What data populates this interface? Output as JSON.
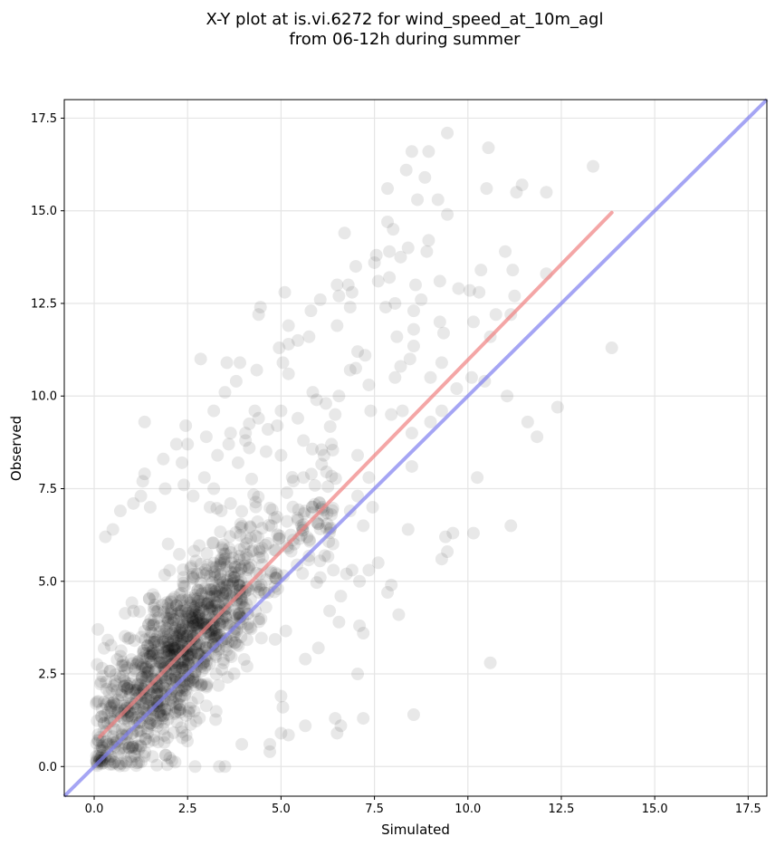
{
  "chart_data": {
    "type": "scatter",
    "title_lines": [
      "X-Y plot at is.vi.6272 for wind_speed_at_10m_agl",
      "from 06-12h during summer"
    ],
    "xlabel": "Simulated",
    "ylabel": "Observed",
    "xlim": [
      -0.8,
      18.0
    ],
    "ylim": [
      -0.8,
      18.0
    ],
    "xticks": [
      0.0,
      2.5,
      5.0,
      7.5,
      10.0,
      12.5,
      15.0,
      17.5
    ],
    "yticks": [
      0.0,
      2.5,
      5.0,
      7.5,
      10.0,
      12.5,
      15.0,
      17.5
    ],
    "xtick_labels": [
      "0.0",
      "2.5",
      "5.0",
      "7.5",
      "10.0",
      "12.5",
      "15.0",
      "17.5"
    ],
    "ytick_labels": [
      "0.0",
      "2.5",
      "5.0",
      "7.5",
      "10.0",
      "12.5",
      "15.0",
      "17.5"
    ],
    "grid": true,
    "point_color": "#000000",
    "point_alpha": 0.09,
    "regression_color": "#f08080",
    "identity_color": "#7f7fef",
    "regression_line": {
      "x": [
        0.15,
        13.85
      ],
      "y": [
        0.8,
        14.95
      ]
    },
    "identity_line": {
      "x": [
        -0.8,
        18.0
      ],
      "y": [
        -0.8,
        18.0
      ]
    },
    "series": [
      {
        "points": [
          [
            9.45,
            17.1
          ],
          [
            8.5,
            16.6
          ],
          [
            8.95,
            16.6
          ],
          [
            10.55,
            16.7
          ],
          [
            13.35,
            16.2
          ],
          [
            8.35,
            16.1
          ],
          [
            8.85,
            15.9
          ],
          [
            7.85,
            15.6
          ],
          [
            10.5,
            15.6
          ],
          [
            11.45,
            15.7
          ],
          [
            11.3,
            15.5
          ],
          [
            12.1,
            15.5
          ],
          [
            8.65,
            15.3
          ],
          [
            9.2,
            15.3
          ],
          [
            9.45,
            14.9
          ],
          [
            7.85,
            14.7
          ],
          [
            6.7,
            14.4
          ],
          [
            8.0,
            14.5
          ],
          [
            8.95,
            14.2
          ],
          [
            8.4,
            14.0
          ],
          [
            8.9,
            13.9
          ],
          [
            11.0,
            13.9
          ],
          [
            7.55,
            13.8
          ],
          [
            7.9,
            13.9
          ],
          [
            8.2,
            13.75
          ],
          [
            7.5,
            13.6
          ],
          [
            7.0,
            13.5
          ],
          [
            10.35,
            13.4
          ],
          [
            11.2,
            13.4
          ],
          [
            7.9,
            13.2
          ],
          [
            12.1,
            13.3
          ],
          [
            7.6,
            13.1
          ],
          [
            8.6,
            13.0
          ],
          [
            9.25,
            13.1
          ],
          [
            6.5,
            13.0
          ],
          [
            6.8,
            13.0
          ],
          [
            6.55,
            12.7
          ],
          [
            6.9,
            12.8
          ],
          [
            9.75,
            12.9
          ],
          [
            10.05,
            12.85
          ],
          [
            10.3,
            12.8
          ],
          [
            5.1,
            12.8
          ],
          [
            8.75,
            12.6
          ],
          [
            11.25,
            12.7
          ],
          [
            6.05,
            12.6
          ],
          [
            8.05,
            12.5
          ],
          [
            7.8,
            12.4
          ],
          [
            6.85,
            12.4
          ],
          [
            4.45,
            12.4
          ],
          [
            4.4,
            12.2
          ],
          [
            5.8,
            12.3
          ],
          [
            8.55,
            12.3
          ],
          [
            10.75,
            12.2
          ],
          [
            11.15,
            12.2
          ],
          [
            10.15,
            12.0
          ],
          [
            9.25,
            12.0
          ],
          [
            5.2,
            11.9
          ],
          [
            6.5,
            11.9
          ],
          [
            8.1,
            11.6
          ],
          [
            8.55,
            11.8
          ],
          [
            9.35,
            11.7
          ],
          [
            5.75,
            11.6
          ],
          [
            5.45,
            11.5
          ],
          [
            10.6,
            11.6
          ],
          [
            5.2,
            11.4
          ],
          [
            4.95,
            11.3
          ],
          [
            8.55,
            11.35
          ],
          [
            13.85,
            11.3
          ],
          [
            7.05,
            11.2
          ],
          [
            7.25,
            11.1
          ],
          [
            9.3,
            10.9
          ],
          [
            6.85,
            10.7
          ],
          [
            8.45,
            11.0
          ],
          [
            8.2,
            10.8
          ],
          [
            3.55,
            10.9
          ],
          [
            3.9,
            10.9
          ],
          [
            5.05,
            10.9
          ],
          [
            2.85,
            11.0
          ],
          [
            7.0,
            10.75
          ],
          [
            9.0,
            10.5
          ],
          [
            8.05,
            10.5
          ],
          [
            10.1,
            10.5
          ],
          [
            4.35,
            10.7
          ],
          [
            5.2,
            10.6
          ],
          [
            7.35,
            10.3
          ],
          [
            3.8,
            10.4
          ],
          [
            3.5,
            10.1
          ],
          [
            9.7,
            10.2
          ],
          [
            10.45,
            10.4
          ],
          [
            11.05,
            10.0
          ],
          [
            5.85,
            10.1
          ],
          [
            6.55,
            10.0
          ],
          [
            5.95,
            9.9
          ],
          [
            6.2,
            9.8
          ],
          [
            5.0,
            9.6
          ],
          [
            7.4,
            9.6
          ],
          [
            4.3,
            9.6
          ],
          [
            5.45,
            9.4
          ],
          [
            6.45,
            9.5
          ],
          [
            4.4,
            9.4
          ],
          [
            4.15,
            9.25
          ],
          [
            4.9,
            9.2
          ],
          [
            1.35,
            9.3
          ],
          [
            2.45,
            9.2
          ],
          [
            3.2,
            9.6
          ],
          [
            3.65,
            9.0
          ],
          [
            4.05,
            9.0
          ],
          [
            4.65,
            9.1
          ],
          [
            7.95,
            9.5
          ],
          [
            8.5,
            9.0
          ],
          [
            8.25,
            9.6
          ],
          [
            9.0,
            9.3
          ],
          [
            9.3,
            9.6
          ],
          [
            11.6,
            9.3
          ],
          [
            11.85,
            8.9
          ],
          [
            12.4,
            9.7
          ],
          [
            3.0,
            8.9
          ],
          [
            3.6,
            8.7
          ],
          [
            4.05,
            8.8
          ],
          [
            5.6,
            8.8
          ],
          [
            3.85,
            8.2
          ],
          [
            6.35,
            8.7
          ],
          [
            2.2,
            8.7
          ],
          [
            2.5,
            8.7
          ],
          [
            3.3,
            8.4
          ],
          [
            4.15,
            8.6
          ],
          [
            4.6,
            8.5
          ],
          [
            5.0,
            8.4
          ],
          [
            6.15,
            8.4
          ],
          [
            7.05,
            8.4
          ],
          [
            2.35,
            8.2
          ],
          [
            1.85,
            8.3
          ],
          [
            1.35,
            7.9
          ],
          [
            1.3,
            7.7
          ],
          [
            2.95,
            7.8
          ],
          [
            3.2,
            7.5
          ],
          [
            2.65,
            7.3
          ],
          [
            1.25,
            7.3
          ],
          [
            0.7,
            6.9
          ],
          [
            1.05,
            7.1
          ],
          [
            1.5,
            7.0
          ],
          [
            1.9,
            7.5
          ],
          [
            2.4,
            7.6
          ],
          [
            3.1,
            7.0
          ],
          [
            3.4,
            6.9
          ],
          [
            3.65,
            7.1
          ],
          [
            5.6,
            7.8
          ],
          [
            7.35,
            7.8
          ],
          [
            8.5,
            8.1
          ],
          [
            7.05,
            7.3
          ],
          [
            7.45,
            7.0
          ],
          [
            6.35,
            6.8
          ],
          [
            6.85,
            6.9
          ],
          [
            9.3,
            5.6
          ],
          [
            9.4,
            6.2
          ],
          [
            9.6,
            6.3
          ],
          [
            9.45,
            5.8
          ],
          [
            10.15,
            6.3
          ],
          [
            10.25,
            7.8
          ],
          [
            11.15,
            6.5
          ],
          [
            8.4,
            6.4
          ],
          [
            7.2,
            6.5
          ],
          [
            7.6,
            5.5
          ],
          [
            7.95,
            4.9
          ],
          [
            7.85,
            4.7
          ],
          [
            8.15,
            4.1
          ],
          [
            7.2,
            3.6
          ],
          [
            7.1,
            3.8
          ],
          [
            6.6,
            4.6
          ],
          [
            7.05,
            2.5
          ],
          [
            7.2,
            1.3
          ],
          [
            6.6,
            1.1
          ],
          [
            6.45,
            1.3
          ],
          [
            6.5,
            0.9
          ],
          [
            10.6,
            2.8
          ],
          [
            8.55,
            1.4
          ],
          [
            0.3,
            6.2
          ],
          [
            0.5,
            6.4
          ],
          [
            0.1,
            3.7
          ],
          [
            0.05,
            1.7
          ],
          [
            0.2,
            0.3
          ],
          [
            3.5,
            0.0
          ],
          [
            3.35,
            0.0
          ],
          [
            2.7,
            0.0
          ],
          [
            4.7,
            0.6
          ],
          [
            4.7,
            0.4
          ],
          [
            5.0,
            1.9
          ],
          [
            5.05,
            1.6
          ],
          [
            5.2,
            0.85
          ],
          [
            5.0,
            0.9
          ],
          [
            5.65,
            1.1
          ],
          [
            3.95,
            0.6
          ],
          [
            6.9,
            5.3
          ],
          [
            7.1,
            5.0
          ],
          [
            6.4,
            5.3
          ],
          [
            7.35,
            5.3
          ],
          [
            6.75,
            5.2
          ],
          [
            6.05,
            5.1
          ],
          [
            6.3,
            4.2
          ],
          [
            6.55,
            3.9
          ],
          [
            6.0,
            3.2
          ],
          [
            5.65,
            2.9
          ]
        ]
      }
    ]
  }
}
